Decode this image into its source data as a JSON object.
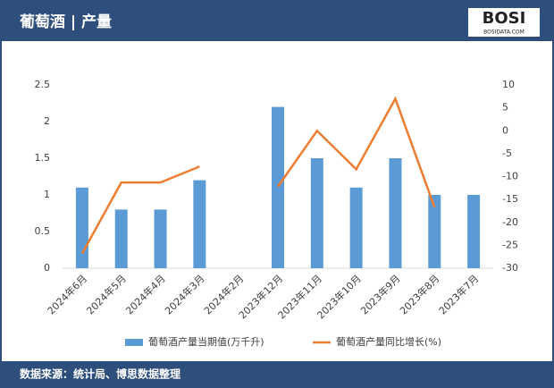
{
  "header": {
    "title": "葡萄酒 | 产量",
    "logo": "BOSI",
    "logo_sub": "BOSIDATA.COM"
  },
  "chart_data": {
    "type": "bar-line",
    "categories": [
      "2024年6月",
      "2024年5月",
      "2024年4月",
      "2024年3月",
      "2024年2月",
      "2023年12月",
      "2023年11月",
      "2023年10月",
      "2023年9月",
      "2023年8月",
      "2023年7月"
    ],
    "series": [
      {
        "name": "葡萄酒产量当期值(万千升)",
        "type": "bar",
        "color": "#5b9bd5",
        "values": [
          1.1,
          0.8,
          0.8,
          1.2,
          null,
          2.2,
          1.5,
          1.1,
          1.5,
          1.0,
          1.0
        ]
      },
      {
        "name": "葡萄酒产量同比增长(%)",
        "type": "line",
        "axis": "y2",
        "color": "#ed7d31",
        "values": [
          -26.8,
          -11.3,
          -11.3,
          -7.8,
          null,
          -12.2,
          0,
          -8.4,
          7,
          -16.7,
          null
        ]
      }
    ],
    "ylim": [
      0,
      2.5
    ],
    "yticks": [
      0,
      0.5,
      1,
      1.5,
      2,
      2.5
    ],
    "y2lim": [
      -30,
      10
    ],
    "y2ticks": [
      -30,
      -25,
      -20,
      -15,
      -10,
      -5,
      0,
      5,
      10
    ],
    "legend": "bottom"
  },
  "footer": {
    "source": "数据来源：统计局、博思数据整理"
  }
}
